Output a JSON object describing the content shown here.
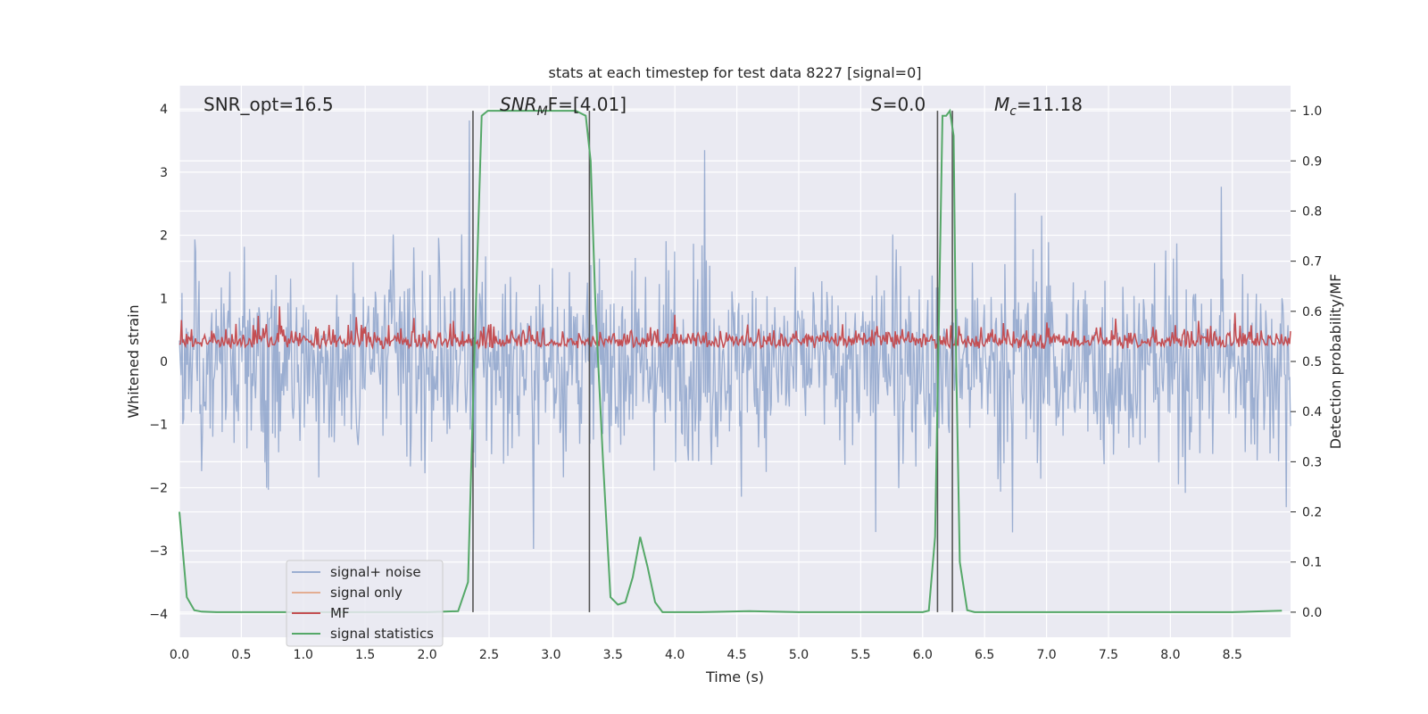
{
  "chart_data": {
    "type": "line",
    "title": "stats at each timestep for test data 8227 [signal=0]",
    "xlabel": "Time (s)",
    "ylabel_left": "Whitened strain",
    "ylabel_right": "Detection probability/MF",
    "xlim": [
      0.0,
      8.97
    ],
    "ylim_left": [
      -4.37,
      4.37
    ],
    "ylim_right": [
      -0.05,
      1.05
    ],
    "xticks": [
      "0.0",
      "0.5",
      "1.0",
      "1.5",
      "2.0",
      "2.5",
      "3.0",
      "3.5",
      "4.0",
      "4.5",
      "5.0",
      "5.5",
      "6.0",
      "6.5",
      "7.0",
      "7.5",
      "8.0",
      "8.5"
    ],
    "yticks_left": [
      "4",
      "3",
      "2",
      "1",
      "0",
      "−1",
      "−2",
      "−3",
      "−4"
    ],
    "yticks_right": [
      "1.0",
      "0.9",
      "0.8",
      "0.7",
      "0.6",
      "0.5",
      "0.4",
      "0.3",
      "0.2",
      "0.1",
      "0.0"
    ],
    "grid": true,
    "legend_position": "lower-left",
    "annotations": {
      "snr_opt": "SNR_opt=16.5",
      "snr_mf_sym": "SNR",
      "snr_mf_sub": "M",
      "snr_mf_rest": "F=[4.01]",
      "s_sym": "S",
      "s_rest": "=0.0",
      "mc_sym": "M",
      "mc_sub": "c",
      "mc_rest": "=11.18"
    },
    "vertical_markers": [
      2.37,
      3.31,
      6.12,
      6.24
    ],
    "series": [
      {
        "name": "signal+ noise",
        "color": "#4c72b0",
        "axis": "left",
        "description_type": "dense noise",
        "envelope_max": 4.0,
        "envelope_min": -4.0
      },
      {
        "name": "signal only",
        "color": "#dd8452",
        "axis": "left",
        "values": []
      },
      {
        "name": "MF",
        "color": "#c44e52",
        "axis": "right",
        "range": [
          0.5,
          0.6
        ]
      },
      {
        "name": "signal statistics",
        "color": "#55a868",
        "axis": "right",
        "x": [
          0.0,
          0.06,
          0.12,
          0.18,
          0.3,
          0.6,
          1.0,
          1.5,
          2.0,
          2.25,
          2.33,
          2.38,
          2.44,
          2.49,
          2.6,
          3.0,
          3.2,
          3.28,
          3.32,
          3.36,
          3.42,
          3.48,
          3.54,
          3.6,
          3.66,
          3.72,
          3.78,
          3.84,
          3.9,
          4.2,
          4.6,
          5.0,
          5.5,
          6.0,
          6.05,
          6.1,
          6.16,
          6.19,
          6.22,
          6.25,
          6.27,
          6.3,
          6.36,
          6.42,
          6.5,
          7.0,
          7.5,
          8.0,
          8.5,
          8.9
        ],
        "y": [
          0.2,
          0.03,
          0.004,
          0.001,
          0.0,
          0.0,
          0.0,
          0.0,
          0.0,
          0.002,
          0.06,
          0.5,
          0.99,
          1.0,
          1.0,
          1.0,
          1.0,
          0.99,
          0.9,
          0.6,
          0.3,
          0.03,
          0.015,
          0.02,
          0.07,
          0.15,
          0.09,
          0.02,
          0.0,
          0.0,
          0.002,
          0.0,
          0.0,
          0.0,
          0.003,
          0.15,
          0.99,
          0.99,
          1.0,
          0.95,
          0.5,
          0.1,
          0.004,
          0.0,
          0.0,
          0.0,
          0.0,
          0.0,
          0.0,
          0.003
        ]
      }
    ]
  }
}
